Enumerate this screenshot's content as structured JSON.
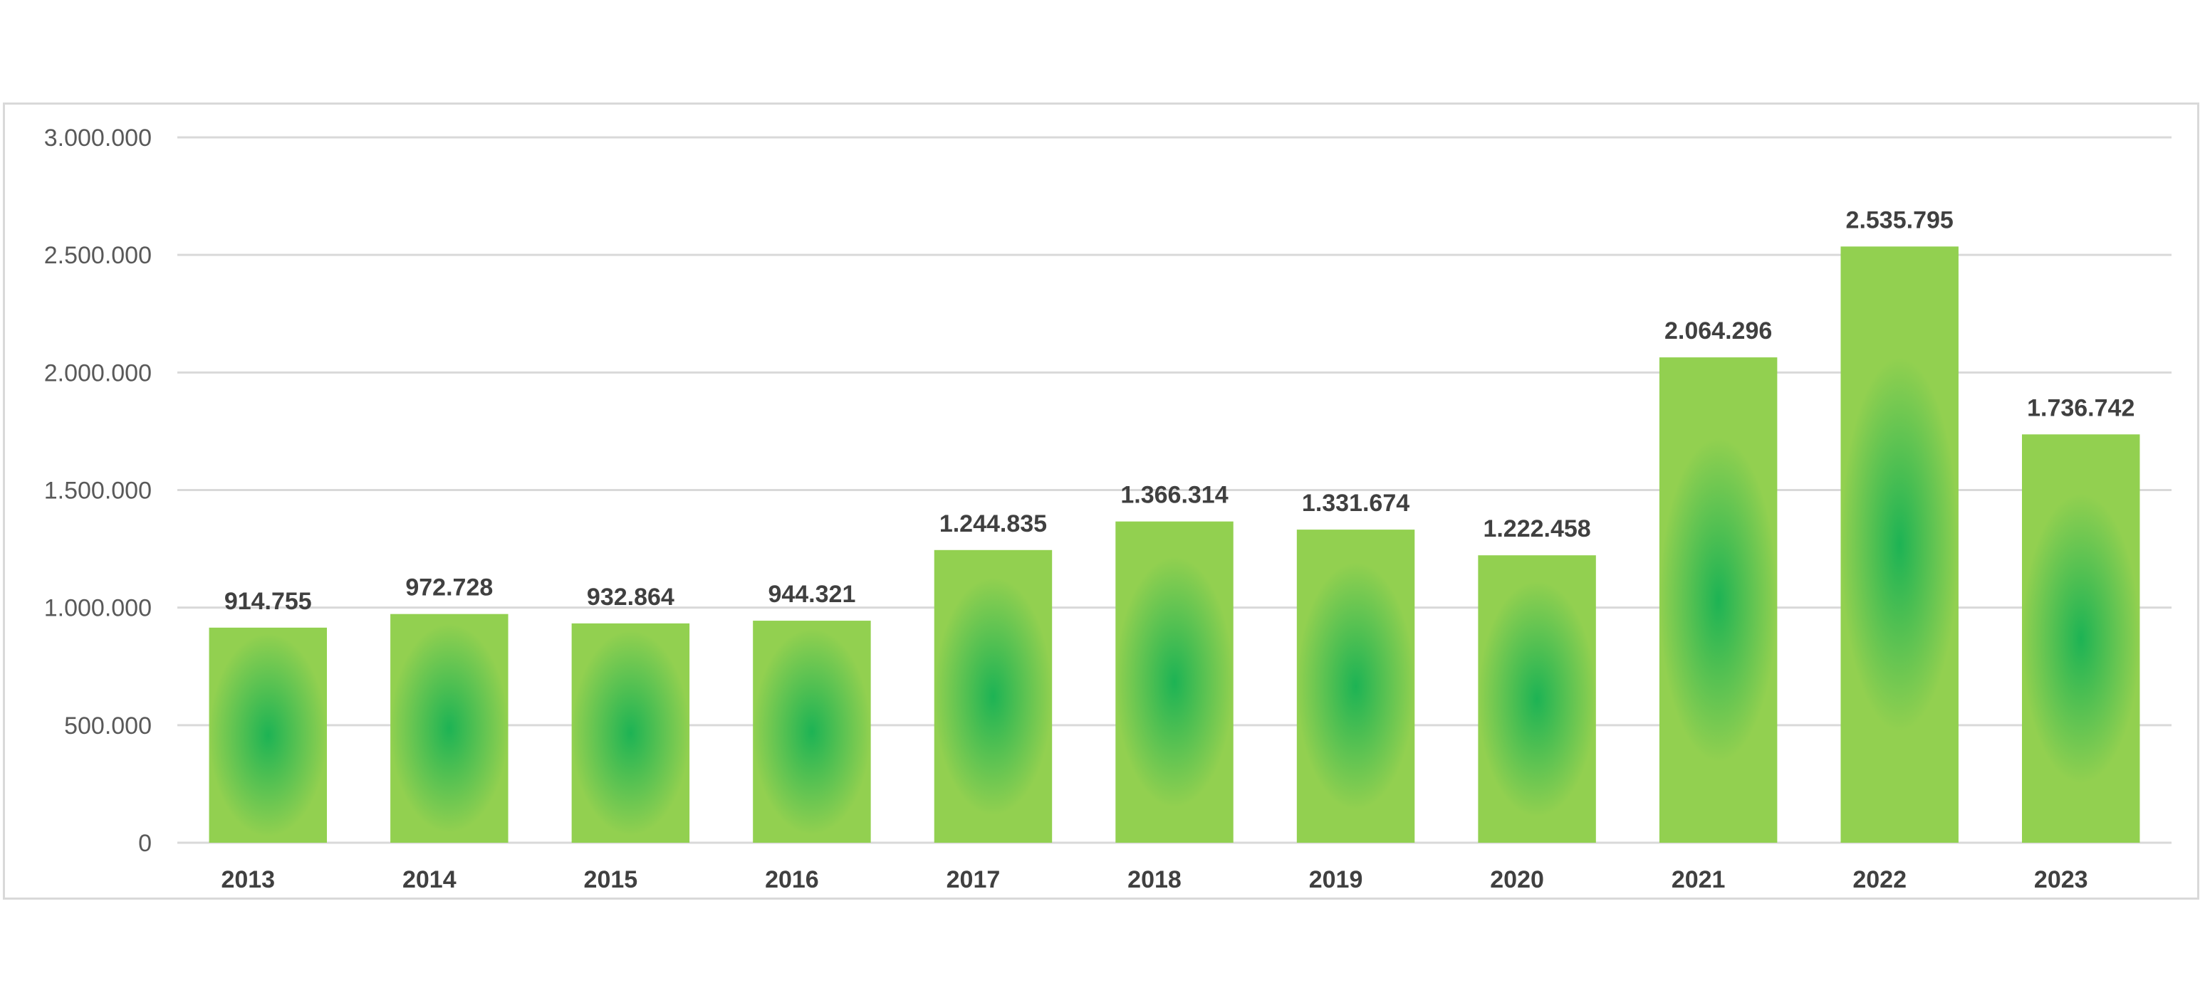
{
  "chart_data": {
    "type": "bar",
    "title": "",
    "xlabel": "",
    "ylabel": "",
    "categories": [
      "2013",
      "2014",
      "2015",
      "2016",
      "2017",
      "2018",
      "2019",
      "2020",
      "2021",
      "2022",
      "2023"
    ],
    "values": [
      914755,
      972728,
      932864,
      944321,
      1244835,
      1366314,
      1331674,
      1222458,
      2064296,
      2535795,
      1736742
    ],
    "data_labels": [
      "914.755",
      "972.728",
      "932.864",
      "944.321",
      "1.244.835",
      "1.366.314",
      "1.331.674",
      "1.222.458",
      "2.064.296",
      "2.535.795",
      "1.736.742"
    ],
    "ylim": [
      0,
      3000000
    ],
    "y_ticks": [
      0,
      500000,
      1000000,
      1500000,
      2000000,
      2500000,
      3000000
    ],
    "y_tick_labels": [
      "0",
      "500.000",
      "1.000.000",
      "1.500.000",
      "2.000.000",
      "2.500.000",
      "3.000.000"
    ],
    "grid": true,
    "legend": "none",
    "colors": {
      "bar_center": "#1db354",
      "bar_edge": "#92d050",
      "gridline": "#d9d9d9",
      "label_text": "#404040",
      "tick_text": "#595959"
    }
  }
}
